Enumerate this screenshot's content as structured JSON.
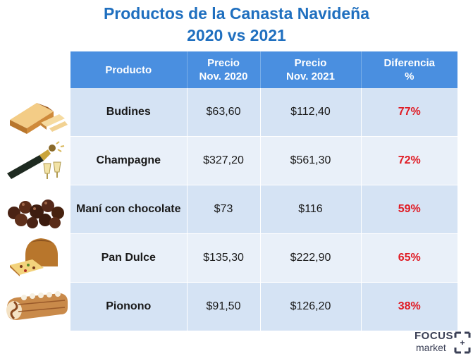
{
  "title_line1": "Productos de la Canasta Navideña",
  "title_line2": "2020 vs 2021",
  "headers": {
    "product": "Producto",
    "price2020_l1": "Precio",
    "price2020_l2": "Nov. 2020",
    "price2021_l1": "Precio",
    "price2021_l2": "Nov. 2021",
    "diff_l1": "Diferencia",
    "diff_l2": "%"
  },
  "chart_data": {
    "type": "table",
    "title": "Productos de la Canasta Navideña 2020 vs 2021",
    "columns": [
      "Producto",
      "Precio Nov. 2020",
      "Precio Nov. 2021",
      "Diferencia %"
    ],
    "rows": [
      {
        "product": "Budines",
        "price_2020": "$63,60",
        "price_2021": "$112,40",
        "diff": "77%"
      },
      {
        "product": "Champagne",
        "price_2020": "$327,20",
        "price_2021": "$561,30",
        "diff": "72%"
      },
      {
        "product": "Maní con chocolate",
        "price_2020": "$73",
        "price_2021": "$116",
        "diff": "59%"
      },
      {
        "product": "Pan Dulce",
        "price_2020": "$135,30",
        "price_2021": "$222,90",
        "diff": "65%"
      },
      {
        "product": "Pionono",
        "price_2020": "$91,50",
        "price_2021": "$126,20",
        "diff": "38%"
      }
    ]
  },
  "colors": {
    "title": "#1f6fbf",
    "header_bg": "#4a8fe0",
    "row_odd": "#d5e3f4",
    "row_even": "#e9f0f9",
    "diff_text": "#e01b24"
  },
  "images": [
    "budin-image",
    "champagne-image",
    "mani-chocolate-image",
    "pan-dulce-image",
    "pionono-image"
  ],
  "logo": {
    "word1": "FOCUS",
    "word2": "market"
  }
}
